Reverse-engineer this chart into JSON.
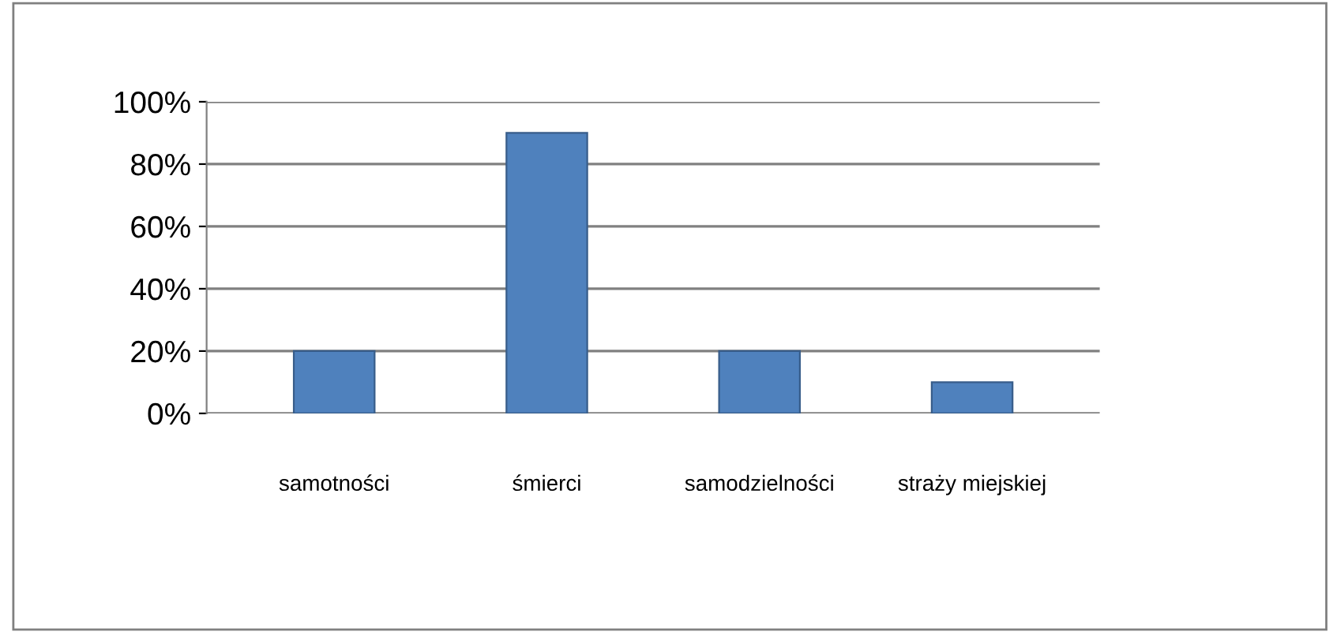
{
  "chart_data": {
    "type": "bar",
    "categories": [
      "samotności",
      "śmierci",
      "samodzielności",
      "straży miejskiej"
    ],
    "values": [
      20,
      90,
      20,
      10
    ],
    "color": "#4f81bd",
    "ylim": [
      0,
      100
    ],
    "yticks": [
      {
        "value": 0,
        "label": "0%"
      },
      {
        "value": 20,
        "label": "20%"
      },
      {
        "value": 40,
        "label": "40%"
      },
      {
        "value": 60,
        "label": "60%"
      },
      {
        "value": 80,
        "label": "80%"
      },
      {
        "value": 100,
        "label": "100%"
      }
    ],
    "grid": "y",
    "legend": false
  }
}
